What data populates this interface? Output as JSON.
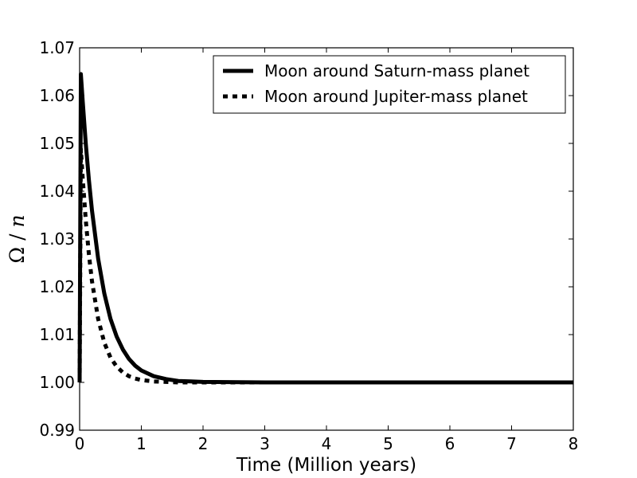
{
  "chart_data": {
    "type": "line",
    "xlabel": "Time  (Million years)",
    "ylabel": {
      "symbol": "Ω",
      "separator": " / ",
      "denominator": "n"
    },
    "xlim": [
      0,
      8
    ],
    "ylim": [
      0.99,
      1.07
    ],
    "xticks": [
      0,
      1,
      2,
      3,
      4,
      5,
      6,
      7,
      8
    ],
    "xtick_labels": [
      "0",
      "1",
      "2",
      "3",
      "4",
      "5",
      "6",
      "7",
      "8"
    ],
    "yticks": [
      0.99,
      1.0,
      1.01,
      1.02,
      1.03,
      1.04,
      1.05,
      1.06,
      1.07
    ],
    "ytick_labels": [
      "0.99",
      "1.00",
      "1.01",
      "1.02",
      "1.03",
      "1.04",
      "1.05",
      "1.06",
      "1.07"
    ],
    "grid": false,
    "legend_position": "top-right",
    "series": [
      {
        "name": "Moon around Saturn-mass planet",
        "style": "solid",
        "color": "#000000",
        "x": [
          0,
          0.02,
          0.05,
          0.1,
          0.15,
          0.2,
          0.3,
          0.4,
          0.5,
          0.6,
          0.7,
          0.8,
          0.9,
          1.0,
          1.2,
          1.4,
          1.6,
          1.8,
          2.0,
          3.0,
          4.0,
          5.0,
          6.0,
          7.0,
          8.0
        ],
        "y": [
          1.0,
          1.0645,
          1.0588,
          1.0499,
          1.0424,
          1.036,
          1.0259,
          1.0186,
          1.0133,
          1.0096,
          1.0069,
          1.0049,
          1.0035,
          1.0025,
          1.0013,
          1.0007,
          1.0003,
          1.0002,
          1.0001,
          1.0,
          1.0,
          1.0,
          1.0,
          1.0,
          1.0
        ]
      },
      {
        "name": "Moon around Jupiter-mass planet",
        "style": "dashed",
        "color": "#000000",
        "x": [
          0,
          0.02,
          0.05,
          0.1,
          0.15,
          0.2,
          0.3,
          0.4,
          0.5,
          0.6,
          0.7,
          0.8,
          0.9,
          1.0,
          1.2,
          1.4,
          1.6,
          1.8,
          2.0,
          3.0,
          4.0,
          5.0,
          6.0,
          7.0,
          8.0
        ],
        "y": [
          1.0,
          1.0488,
          1.0427,
          1.0339,
          1.0268,
          1.0212,
          1.0133,
          1.0083,
          1.0052,
          1.0033,
          1.0021,
          1.0013,
          1.0008,
          1.0005,
          1.0002,
          1.0001,
          1.0,
          1.0,
          1.0,
          1.0,
          1.0,
          1.0,
          1.0,
          1.0,
          1.0
        ]
      }
    ]
  }
}
